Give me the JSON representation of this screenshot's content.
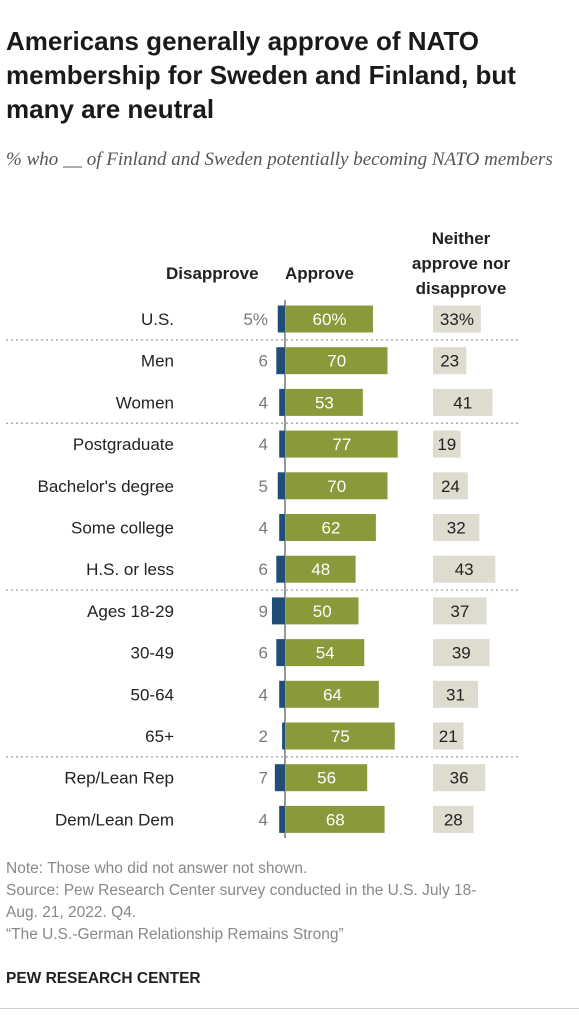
{
  "title": "Americans generally approve of NATO membership for Sweden and Finland, but many are neutral",
  "subtitle": "% who __ of Finland and Sweden potentially becoming NATO members",
  "column_headers": {
    "disapprove": "Disapprove",
    "approve": "Approve",
    "neither_lines": [
      "Neither",
      "approve nor",
      "disapprove"
    ]
  },
  "colors": {
    "disapprove": "#1f4e79",
    "approve": "#8a9a3a",
    "neither": "#dedbcf",
    "approve_text": "#ffffff",
    "label_text": "#222222",
    "disapprove_value_text": "#7a7a7a",
    "divider": "#9a9a9a"
  },
  "chart_data": {
    "type": "bar",
    "orientation": "horizontal",
    "stacked": false,
    "categories": [
      "U.S.",
      "Men",
      "Women",
      "Postgraduate",
      "Bachelor's degree",
      "Some college",
      "H.S. or less",
      "Ages 18-29",
      "30-49",
      "50-64",
      "65+",
      "Rep/Lean Rep",
      "Dem/Lean Dem"
    ],
    "value_labels": {
      "disapprove": [
        "5%",
        "6",
        "4",
        "4",
        "5",
        "4",
        "6",
        "9",
        "6",
        "4",
        "2",
        "7",
        "4"
      ],
      "approve": [
        "60%",
        "70",
        "53",
        "77",
        "70",
        "62",
        "48",
        "50",
        "54",
        "64",
        "75",
        "56",
        "68"
      ],
      "neither": [
        "33%",
        "23",
        "41",
        "19",
        "24",
        "32",
        "43",
        "37",
        "39",
        "31",
        "21",
        "36",
        "28"
      ]
    },
    "series": [
      {
        "name": "Disapprove",
        "values": [
          5,
          6,
          4,
          4,
          5,
          4,
          6,
          9,
          6,
          4,
          2,
          7,
          4
        ]
      },
      {
        "name": "Approve",
        "values": [
          60,
          70,
          53,
          77,
          70,
          62,
          48,
          50,
          54,
          64,
          75,
          56,
          68
        ]
      },
      {
        "name": "Neither approve nor disapprove",
        "values": [
          33,
          23,
          41,
          19,
          24,
          32,
          43,
          37,
          39,
          31,
          21,
          36,
          28
        ]
      }
    ],
    "group_dividers_after": [
      "U.S.",
      "Women",
      "H.S. or less",
      "65+"
    ],
    "unit": "%"
  },
  "notes": {
    "note": "Note: Those who did not answer not shown.",
    "source_lines": [
      "Source: Pew Research Center survey conducted in the U.S. July 18-",
      "Aug. 21, 2022. Q4."
    ],
    "report": "“The U.S.-German Relationship Remains Strong”"
  },
  "brand": "PEW RESEARCH CENTER"
}
